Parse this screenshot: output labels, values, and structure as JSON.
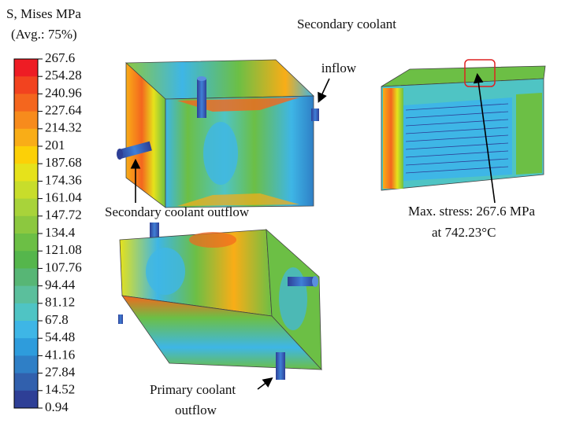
{
  "legend": {
    "title": [
      "S, Mises MPa",
      "(Avg.: 75%)"
    ],
    "labels": [
      "267.6",
      "254.28",
      "240.96",
      "227.64",
      "214.32",
      "201",
      "187.68",
      "174.36",
      "161.04",
      "147.72",
      "134.4",
      "121.08",
      "107.76",
      "94.44",
      "81.12",
      "67.8",
      "54.48",
      "41.16",
      "27.84",
      "14.52",
      "0.94"
    ],
    "colors": [
      "#ee1c24",
      "#f2431f",
      "#f4661e",
      "#f78b1c",
      "#f9ad17",
      "#fcd007",
      "#e6e21b",
      "#c8dd2b",
      "#a8d33a",
      "#8cc83f",
      "#6cbf45",
      "#55b64c",
      "#57b675",
      "#5bbf9c",
      "#4fc4c4",
      "#3eb6e6",
      "#2e9cdc",
      "#2f7fc6",
      "#3160ad",
      "#2e3f96"
    ]
  },
  "annotations": {
    "secondary_inflow": [
      "Secondary coolant",
      "inflow"
    ],
    "secondary_outflow": "Secondary coolant outflow",
    "max_stress": [
      "Max. stress: 267.6 MPa",
      "at 742.23°C"
    ],
    "primary_outflow": [
      "Primary coolant",
      "outflow"
    ]
  }
}
